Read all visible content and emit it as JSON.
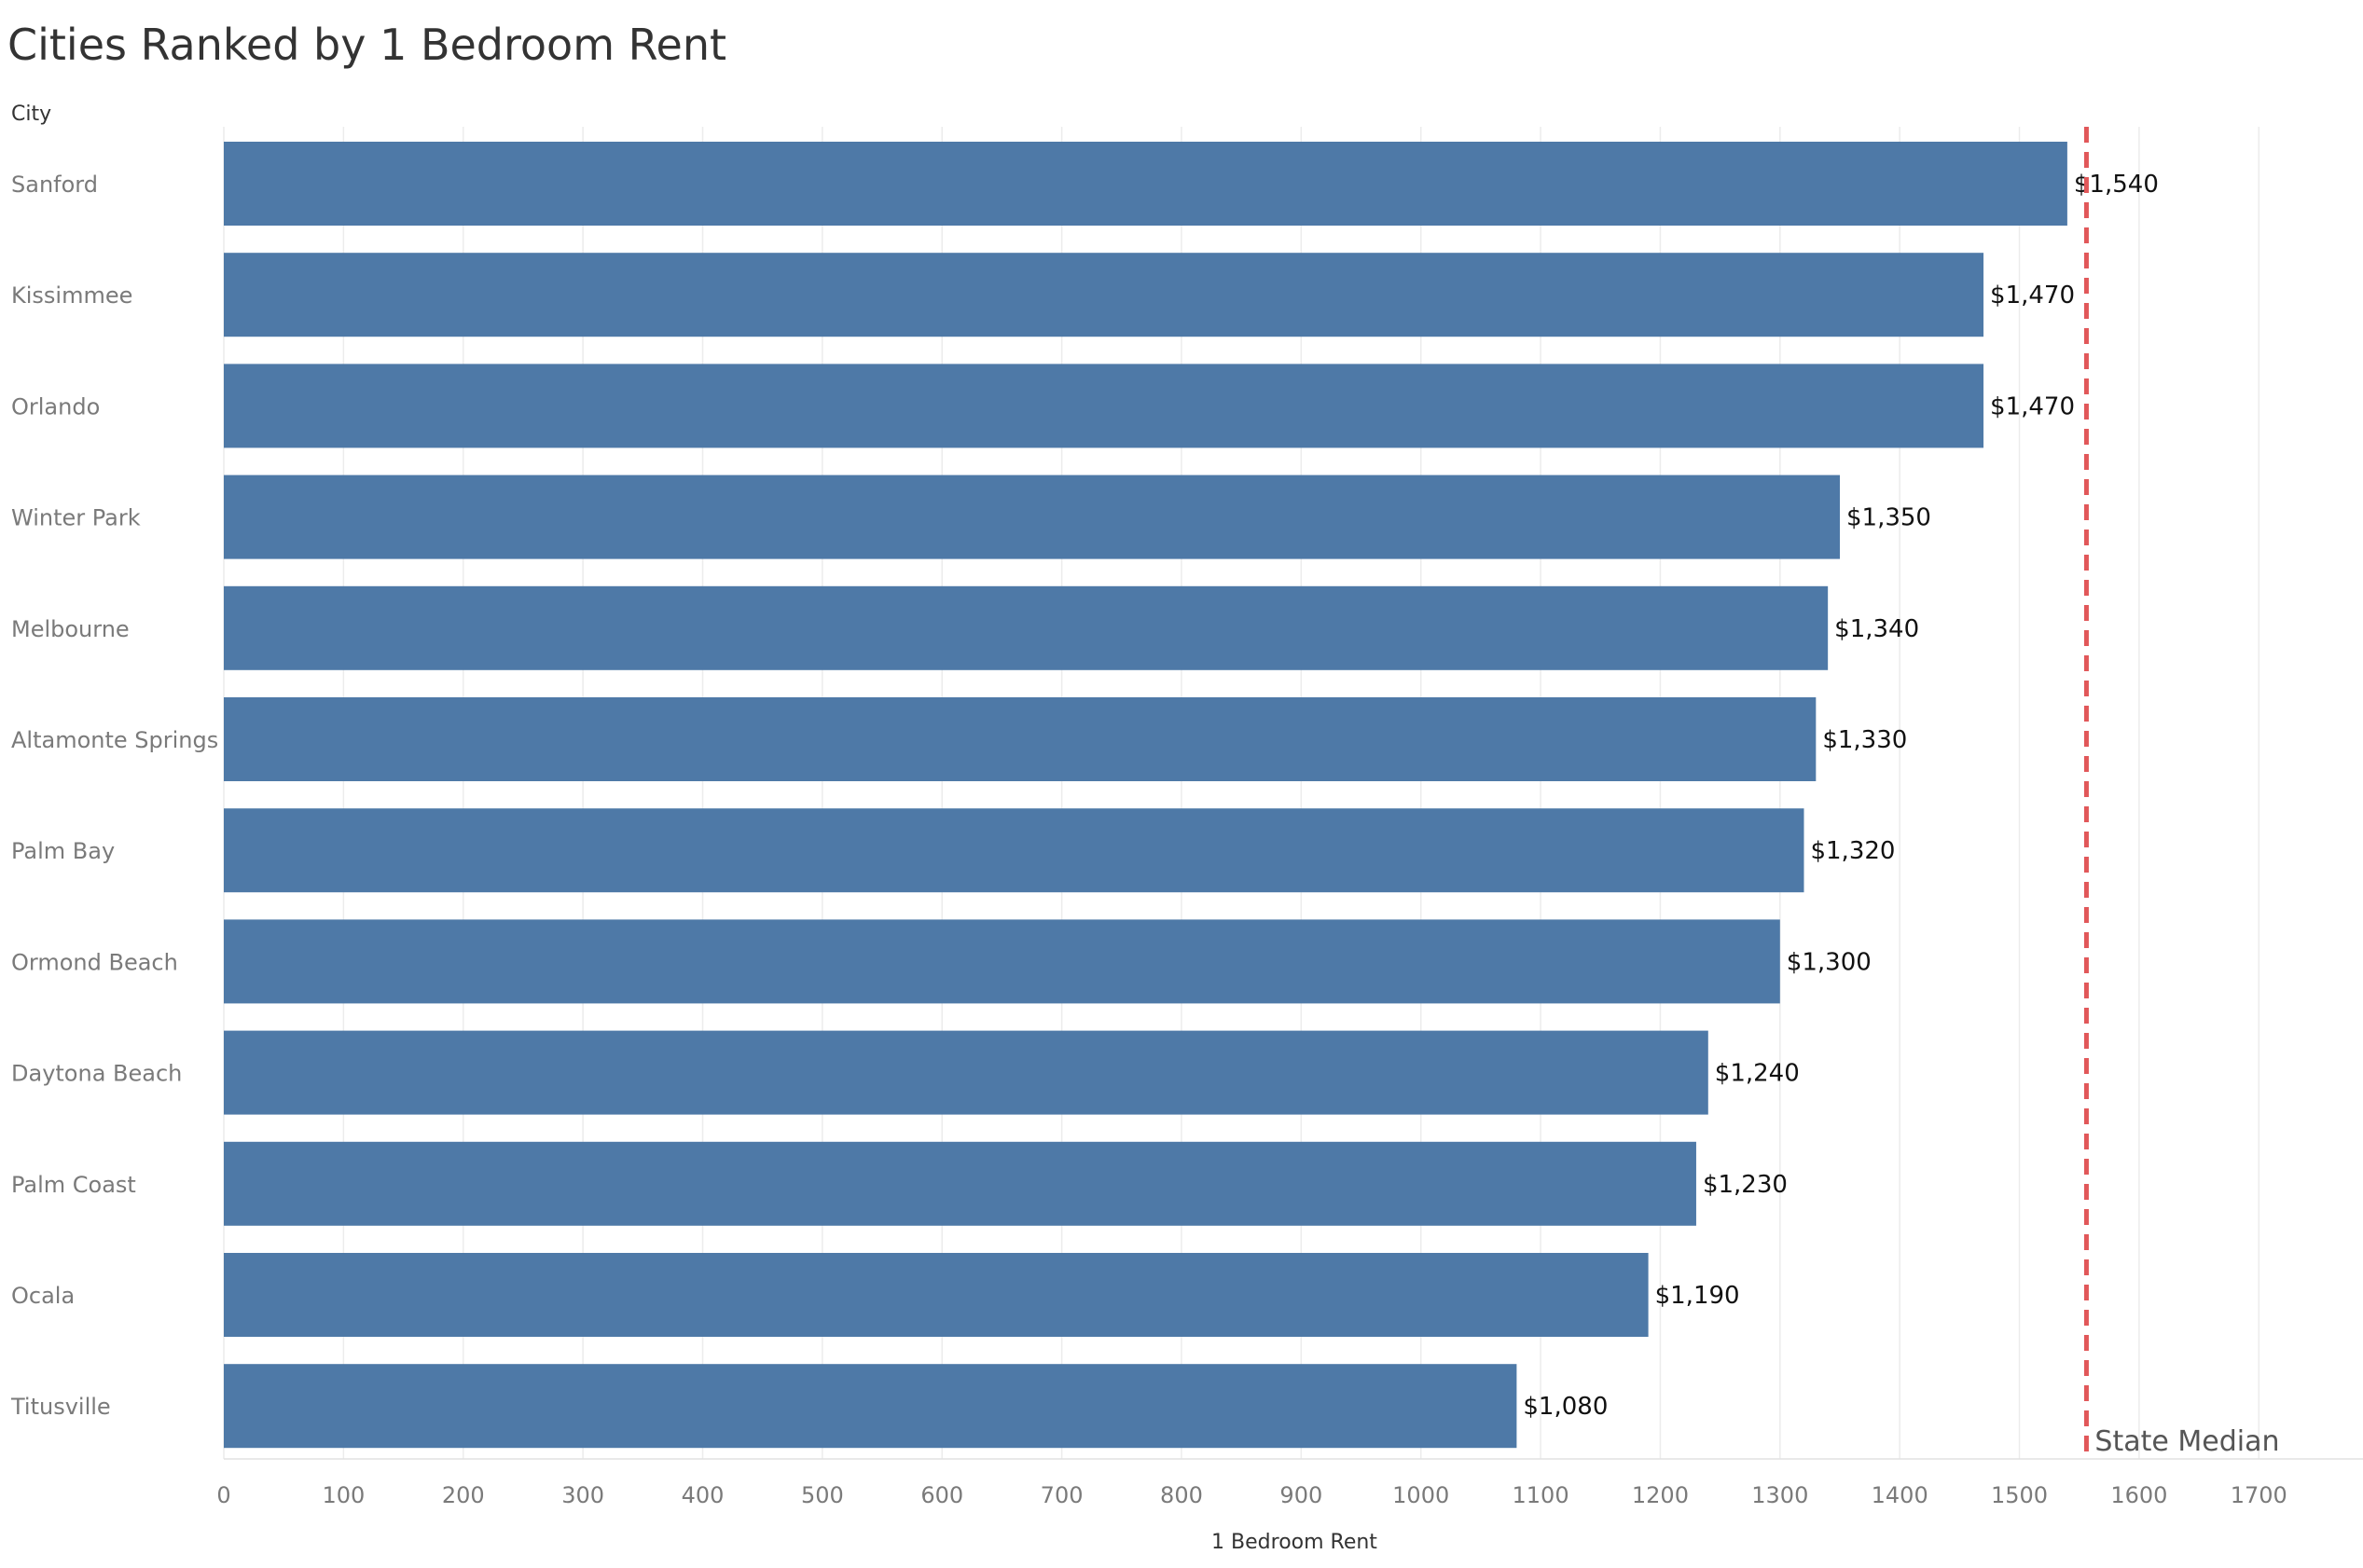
{
  "chart_data": {
    "type": "bar",
    "orientation": "horizontal",
    "title": "Cities Ranked by 1 Bedroom Rent",
    "category_header": "City",
    "xlabel": "1 Bedroom Rent",
    "ylabel": "",
    "xlim": [
      0,
      1800
    ],
    "x_ticks": [
      0,
      100,
      200,
      300,
      400,
      500,
      600,
      700,
      800,
      900,
      1000,
      1100,
      1200,
      1300,
      1400,
      1500,
      1600,
      1700
    ],
    "grid": true,
    "categories": [
      "Sanford",
      "Kissimmee",
      "Orlando",
      "Winter Park",
      "Melbourne",
      "Altamonte Springs",
      "Palm Bay",
      "Ormond Beach",
      "Daytona Beach",
      "Palm Coast",
      "Ocala",
      "Titusville"
    ],
    "values": [
      1540,
      1470,
      1470,
      1350,
      1340,
      1330,
      1320,
      1300,
      1240,
      1230,
      1190,
      1080
    ],
    "value_labels": [
      "$1,540",
      "$1,470",
      "$1,470",
      "$1,350",
      "$1,340",
      "$1,330",
      "$1,320",
      "$1,300",
      "$1,240",
      "$1,230",
      "$1,190",
      "$1,080"
    ],
    "bar_color": "#4e79a7",
    "reference_line": {
      "label": "State Median",
      "value": 1556,
      "color": "#e15759",
      "style": "dashed"
    }
  }
}
